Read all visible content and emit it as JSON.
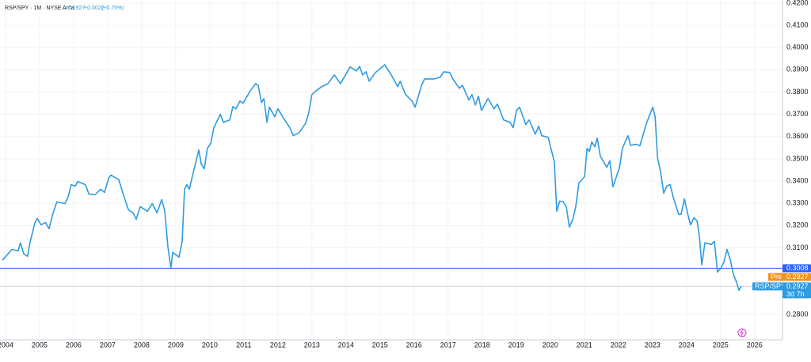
{
  "chart_data": {
    "type": "line",
    "header": {
      "symbol": "RSP/SPY · 1M · NYSE Arca",
      "last": "0.2927",
      "change": "+0.0022",
      "change_pct": "(+0.75%)"
    },
    "x": [
      2003.91,
      2004.19,
      2004.37,
      2004.44,
      2004.54,
      2004.65,
      2004.72,
      2004.86,
      2004.93,
      2005.05,
      2005.17,
      2005.28,
      2005.4,
      2005.51,
      2005.75,
      2005.84,
      2005.93,
      2006.05,
      2006.12,
      2006.35,
      2006.45,
      2006.63,
      2006.79,
      2006.91,
      2007.03,
      2007.1,
      2007.33,
      2007.45,
      2007.61,
      2007.75,
      2007.84,
      2007.96,
      2008.17,
      2008.31,
      2008.45,
      2008.59,
      2008.68,
      2008.77,
      2008.86,
      2008.91,
      2009.1,
      2009.19,
      2009.26,
      2009.33,
      2009.4,
      2009.52,
      2009.68,
      2009.75,
      2009.84,
      2009.93,
      2010.03,
      2010.12,
      2010.31,
      2010.4,
      2010.59,
      2010.68,
      2010.77,
      2010.89,
      2010.98,
      2011.19,
      2011.35,
      2011.42,
      2011.52,
      2011.59,
      2011.68,
      2011.75,
      2011.91,
      2012.0,
      2012.17,
      2012.35,
      2012.45,
      2012.63,
      2012.82,
      2012.91,
      2013.0,
      2013.1,
      2013.28,
      2013.47,
      2013.66,
      2013.84,
      2014.12,
      2014.31,
      2014.4,
      2014.49,
      2014.59,
      2014.68,
      2014.87,
      2015.14,
      2015.33,
      2015.52,
      2015.59,
      2015.75,
      2015.94,
      2016.03,
      2016.22,
      2016.31,
      2016.59,
      2016.77,
      2016.87,
      2017.05,
      2017.14,
      2017.33,
      2017.42,
      2017.61,
      2017.7,
      2017.8,
      2017.89,
      2017.98,
      2018.17,
      2018.35,
      2018.45,
      2018.63,
      2018.82,
      2018.91,
      2019.01,
      2019.1,
      2019.28,
      2019.38,
      2019.56,
      2019.66,
      2019.75,
      2019.94,
      2020.03,
      2020.12,
      2020.19,
      2020.28,
      2020.38,
      2020.47,
      2020.56,
      2020.66,
      2020.75,
      2020.84,
      2021.01,
      2021.08,
      2021.15,
      2021.22,
      2021.31,
      2021.38,
      2021.47,
      2021.66,
      2021.75,
      2021.84,
      2022.03,
      2022.12,
      2022.28,
      2022.36,
      2022.54,
      2022.63,
      2022.82,
      2023.01,
      2023.08,
      2023.15,
      2023.24,
      2023.33,
      2023.42,
      2023.52,
      2023.61,
      2023.77,
      2023.84,
      2023.94,
      2024.03,
      2024.12,
      2024.22,
      2024.31,
      2024.38,
      2024.45,
      2024.54,
      2024.73,
      2024.82,
      2024.91,
      2025.01,
      2025.1,
      2025.19,
      2025.29,
      2025.38,
      2025.47,
      2025.54,
      2025.61
    ],
    "series": [
      {
        "name": "RSP/SPY",
        "color": "#2f9be0",
        "values": [
          0.3044,
          0.3093,
          0.3086,
          0.3122,
          0.3072,
          0.3062,
          0.3122,
          0.3211,
          0.3232,
          0.3203,
          0.3214,
          0.3186,
          0.3257,
          0.3306,
          0.3299,
          0.3328,
          0.3384,
          0.3377,
          0.3398,
          0.3384,
          0.3342,
          0.3338,
          0.3363,
          0.3349,
          0.3413,
          0.3427,
          0.3406,
          0.3345,
          0.3271,
          0.3257,
          0.3228,
          0.3285,
          0.3264,
          0.3299,
          0.3257,
          0.3317,
          0.3264,
          0.3104,
          0.3008,
          0.3079,
          0.3058,
          0.3129,
          0.3363,
          0.3384,
          0.3363,
          0.3441,
          0.354,
          0.3476,
          0.3455,
          0.3547,
          0.3569,
          0.364,
          0.37,
          0.3664,
          0.3675,
          0.3735,
          0.3725,
          0.376,
          0.375,
          0.3806,
          0.3838,
          0.3831,
          0.3753,
          0.3771,
          0.3664,
          0.3732,
          0.3689,
          0.3725,
          0.3682,
          0.364,
          0.3604,
          0.3618,
          0.3661,
          0.371,
          0.3789,
          0.3803,
          0.3824,
          0.3838,
          0.3877,
          0.3838,
          0.3913,
          0.3895,
          0.3916,
          0.3877,
          0.3891,
          0.3849,
          0.3888,
          0.3923,
          0.3877,
          0.3824,
          0.3849,
          0.3789,
          0.376,
          0.3732,
          0.3831,
          0.3859,
          0.3859,
          0.3867,
          0.3891,
          0.3888,
          0.3859,
          0.3817,
          0.3831,
          0.3764,
          0.3789,
          0.3742,
          0.3781,
          0.3718,
          0.3771,
          0.3725,
          0.3746,
          0.3675,
          0.3664,
          0.364,
          0.3718,
          0.3732,
          0.3654,
          0.3675,
          0.3611,
          0.3647,
          0.3604,
          0.3597,
          0.354,
          0.3487,
          0.3264,
          0.331,
          0.3306,
          0.3285,
          0.3193,
          0.3228,
          0.3285,
          0.3391,
          0.342,
          0.3547,
          0.3533,
          0.3576,
          0.3554,
          0.3593,
          0.3512,
          0.3462,
          0.3491,
          0.3374,
          0.3459,
          0.3547,
          0.3604,
          0.3561,
          0.3565,
          0.3558,
          0.3657,
          0.3732,
          0.3689,
          0.3505,
          0.3441,
          0.3345,
          0.3377,
          0.3384,
          0.3328,
          0.325,
          0.325,
          0.332,
          0.3257,
          0.3203,
          0.3235,
          0.3221,
          0.315,
          0.3023,
          0.3122,
          0.3115,
          0.3129,
          0.2991,
          0.3008,
          0.3037,
          0.3093,
          0.3044,
          0.298,
          0.2945,
          0.2909,
          0.2927
        ]
      }
    ],
    "xlim": [
      2003.84,
      2026.82
    ],
    "xticks": [
      2004,
      2005,
      2006,
      2007,
      2008,
      2009,
      2010,
      2011,
      2012,
      2013,
      2014,
      2015,
      2016,
      2017,
      2018,
      2019,
      2020,
      2021,
      2022,
      2023,
      2024,
      2025,
      2026
    ],
    "ylim": [
      0.2686,
      0.4214
    ],
    "yticks": [
      {
        "value": 0.28,
        "label": "0.2800"
      },
      {
        "value": 0.31,
        "label": "0.3100"
      },
      {
        "value": 0.32,
        "label": "0.3200"
      },
      {
        "value": 0.33,
        "label": "0.3300"
      },
      {
        "value": 0.34,
        "label": "0.3400"
      },
      {
        "value": 0.35,
        "label": "0.3500"
      },
      {
        "value": 0.36,
        "label": "0.3600"
      },
      {
        "value": 0.37,
        "label": "0.3700"
      },
      {
        "value": 0.38,
        "label": "0.3800"
      },
      {
        "value": 0.39,
        "label": "0.3900"
      },
      {
        "value": 0.4,
        "label": "0.4000"
      },
      {
        "value": 0.41,
        "label": "0.4100"
      },
      {
        "value": 0.42,
        "label": "0.4200"
      }
    ],
    "grid": true,
    "hline": {
      "value": 0.3008,
      "color": "#2962ff"
    },
    "pre": {
      "tag": "Pre",
      "value": 0.2927,
      "color": "#f7931a"
    },
    "last_label": {
      "name": "RSP/SPY",
      "value": 0.2927,
      "countdown": "3d 7h"
    }
  }
}
